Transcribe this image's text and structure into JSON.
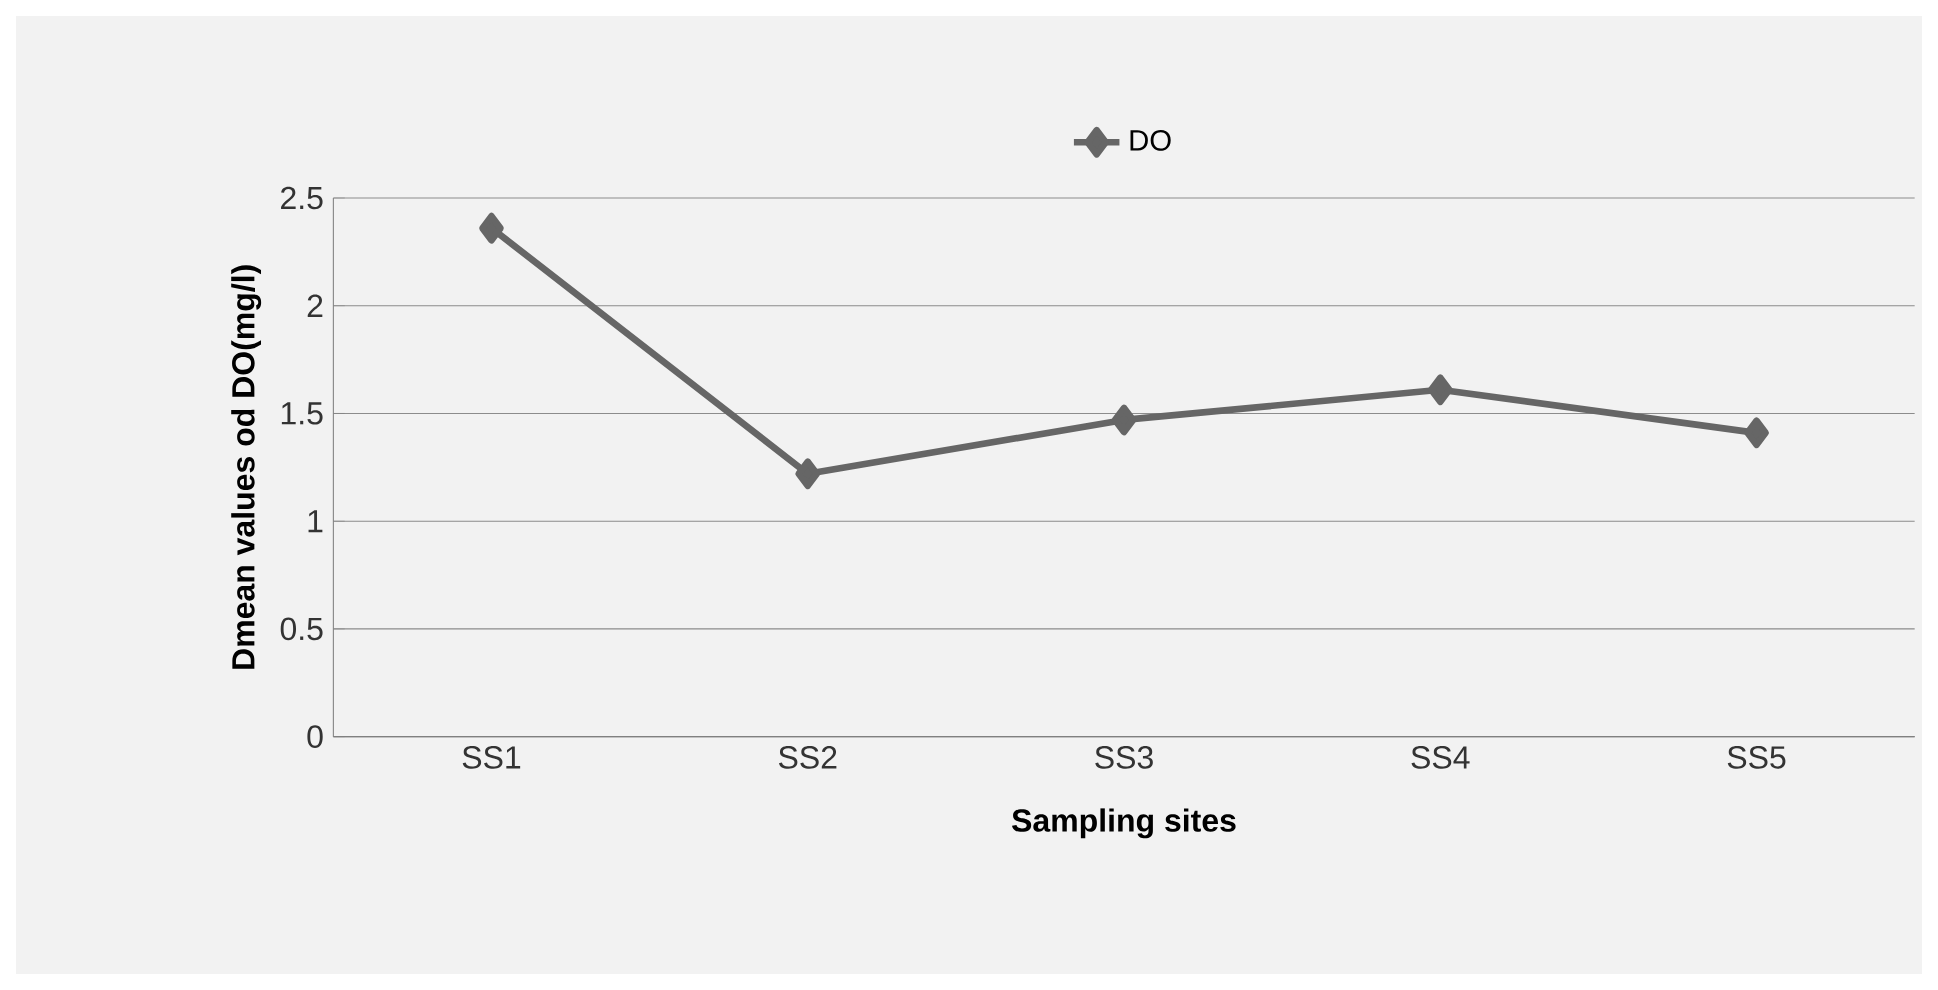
{
  "chart_data": {
    "type": "line",
    "xlabel": "Sampling sites",
    "ylabel": "Dmean values od DO(mg/l)",
    "categories": [
      "SS1",
      "SS2",
      "SS3",
      "SS4",
      "SS5"
    ],
    "series": [
      {
        "name": "DO",
        "color": "#666666",
        "values": [
          2.36,
          1.22,
          1.47,
          1.61,
          1.41
        ]
      }
    ],
    "ylim": [
      0,
      2.5
    ],
    "yticks": [
      0,
      0.5,
      1,
      1.5,
      2,
      2.5
    ],
    "grid": "y",
    "legend": "top",
    "marker": "diamond"
  }
}
